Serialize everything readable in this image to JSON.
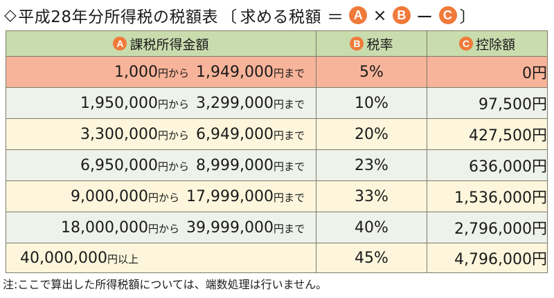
{
  "title": {
    "prefix_symbol": "◇",
    "text": "平成28年分所得税の税額表",
    "bracket_open": "〔",
    "formula_label": "求める税額",
    "equals": "＝",
    "times": "×",
    "minus": "ー",
    "bracket_close": "〕",
    "badge_a": "A",
    "badge_b": "B",
    "badge_c": "C"
  },
  "table": {
    "headers": [
      {
        "badge": "A",
        "label": "課税所得金額"
      },
      {
        "badge": "B",
        "label": "税率"
      },
      {
        "badge": "C",
        "label": "控除額"
      }
    ],
    "rows": [
      {
        "from": "1,000",
        "from_unit": "円から",
        "to": "1,949,000",
        "to_unit": "円まで",
        "rate": "5%",
        "deduction": "0",
        "deduction_unit": "円"
      },
      {
        "from": "1,950,000",
        "from_unit": "円から",
        "to": "3,299,000",
        "to_unit": "円まで",
        "rate": "10%",
        "deduction": "97,500",
        "deduction_unit": "円"
      },
      {
        "from": "3,300,000",
        "from_unit": "円から",
        "to": "6,949,000",
        "to_unit": "円まで",
        "rate": "20%",
        "deduction": "427,500",
        "deduction_unit": "円"
      },
      {
        "from": "6,950,000",
        "from_unit": "円から",
        "to": "8,999,000",
        "to_unit": "円まで",
        "rate": "23%",
        "deduction": "636,000",
        "deduction_unit": "円"
      },
      {
        "from": "9,000,000",
        "from_unit": "円から",
        "to": "17,999,000",
        "to_unit": "円まで",
        "rate": "33%",
        "deduction": "1,536,000",
        "deduction_unit": "円"
      },
      {
        "from": "18,000,000",
        "from_unit": "円から",
        "to": "39,999,000",
        "to_unit": "円まで",
        "rate": "40%",
        "deduction": "2,796,000",
        "deduction_unit": "円"
      },
      {
        "from": "40,000,000",
        "from_unit": "円以上",
        "rate": "45%",
        "deduction": "4,796,000",
        "deduction_unit": "円"
      }
    ]
  },
  "note": "注:ここで算出した所得税額については、端数処理は行いません。",
  "colors": {
    "badge": "#f07a3a",
    "header_bg": "#c9dcae",
    "highlight_row": "#f8b49a",
    "pale_row": "#eef2ea",
    "cream_row": "#fdf6dc",
    "border": "#7a7a6a"
  }
}
